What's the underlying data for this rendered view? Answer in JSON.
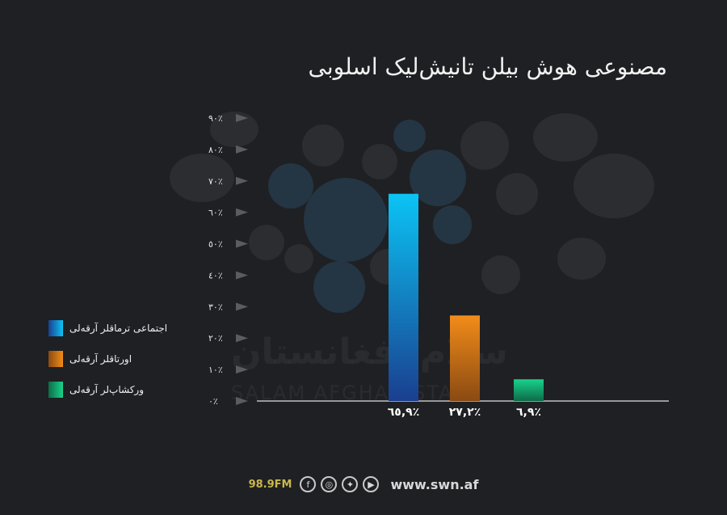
{
  "chart_data": {
    "type": "bar",
    "title": "مصنوعی هوش بیلن تانیش‌لیک اسلوبی",
    "categories": [
      "اجتماعی ترماقلر آرقه‌لی",
      "اورتاقلر آرقه‌لی",
      "ورکشاپ‌لر آرقه‌لی"
    ],
    "values": [
      65.9,
      27.2,
      6.9
    ],
    "value_labels": [
      "٦٥,٩٪",
      "٢٧,٢٪",
      "٦,٩٪"
    ],
    "ylim": [
      0,
      90
    ],
    "y_ticks": [
      0,
      10,
      20,
      30,
      40,
      50,
      60,
      70,
      80,
      90
    ],
    "y_tick_labels": [
      "٠٪",
      "١٠٪",
      "٢٠٪",
      "٣٠٪",
      "٤٠٪",
      "٥٠٪",
      "٦٠٪",
      "٧٠٪",
      "٨٠٪",
      "٩٠٪"
    ],
    "grid": false,
    "legend_position": "left",
    "colors": [
      {
        "top": "#0bc4f5",
        "bottom": "#1a3f8f"
      },
      {
        "top": "#f28c1a",
        "bottom": "#8a4a12"
      },
      {
        "top": "#19d28a",
        "bottom": "#0d6b49"
      }
    ]
  },
  "watermark": {
    "arabic": "سلام افغانستان",
    "english": "SALAM AFGHANISTAN"
  },
  "footer": {
    "frequency": "98.9FM",
    "social_icons": [
      "facebook-icon",
      "instagram-icon",
      "twitter-icon",
      "youtube-icon"
    ],
    "website": "www.swn.af"
  }
}
